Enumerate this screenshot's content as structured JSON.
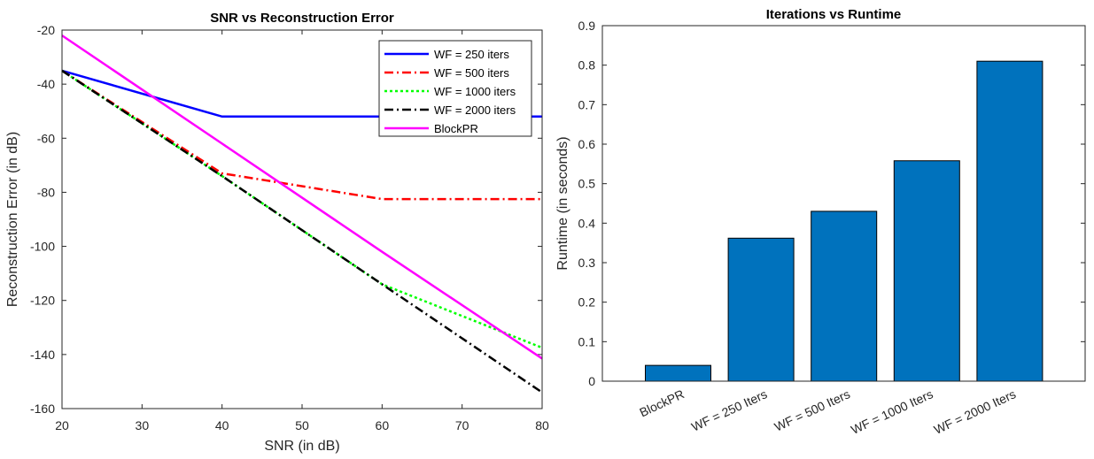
{
  "chart_data": [
    {
      "type": "line",
      "title": "SNR vs Reconstruction Error",
      "xlabel": "SNR (in dB)",
      "ylabel": "Reconstruction Error (in dB)",
      "xlim": [
        20,
        80
      ],
      "ylim": [
        -160,
        -20
      ],
      "xticks": [
        20,
        30,
        40,
        50,
        60,
        70,
        80
      ],
      "yticks": [
        -20,
        -40,
        -60,
        -80,
        -100,
        -120,
        -140,
        -160
      ],
      "x": [
        20,
        40,
        60,
        80
      ],
      "legend_position": "top-right",
      "grid": false,
      "series": [
        {
          "name": "WF = 250 iters",
          "values": [
            -35,
            -52,
            -52,
            -52
          ],
          "color": "#0000ff",
          "dash": "solid"
        },
        {
          "name": "WF = 500 iters",
          "values": [
            -35,
            -73,
            -82.5,
            -82.5
          ],
          "color": "#ff0000",
          "dash": "dashdot"
        },
        {
          "name": "WF = 1000 iters",
          "values": [
            -35,
            -74,
            -114,
            -137.5
          ],
          "color": "#00ff00",
          "dash": "dotted"
        },
        {
          "name": "WF = 2000 iters",
          "values": [
            -35,
            -74,
            -114,
            -154
          ],
          "color": "#000000",
          "dash": "dashdot"
        },
        {
          "name": "BlockPR",
          "values": [
            -22,
            -62,
            -102,
            -141.5
          ],
          "color": "#ff00ff",
          "dash": "solid"
        }
      ]
    },
    {
      "type": "bar",
      "title": "Iterations vs Runtime",
      "xlabel": "",
      "ylabel": "Runtime (in seconds)",
      "ylim": [
        0,
        0.9
      ],
      "yticks": [
        0,
        0.1,
        0.2,
        0.3,
        0.4,
        0.5,
        0.6,
        0.7,
        0.8,
        0.9
      ],
      "categories": [
        "BlockPR",
        "WF = 250 Iters",
        "WF = 500 Iters",
        "WF = 1000 Iters",
        "WF = 2000 Iters"
      ],
      "values": [
        0.04,
        0.362,
        0.43,
        0.558,
        0.81
      ],
      "bar_color": "#0072bd",
      "grid": false
    }
  ]
}
